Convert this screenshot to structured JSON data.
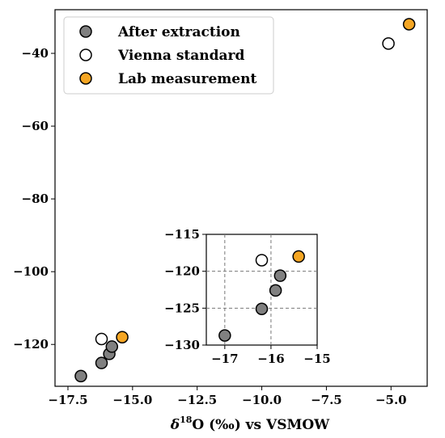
{
  "chart_data": {
    "type": "scatter",
    "xlabel_parts": {
      "delta": "δ",
      "sup": "18",
      "rest": "O (‰) vs VSMOW"
    },
    "xlim": [
      -18.0,
      -3.6
    ],
    "ylim": [
      -131.5,
      -28.0
    ],
    "xticks": [
      -17.5,
      -15.0,
      -12.5,
      -10.0,
      -7.5,
      -5.0
    ],
    "xtick_labels": [
      "−17.5",
      "−15.0",
      "−12.5",
      "−10.0",
      "−7.5",
      "−5.0"
    ],
    "yticks": [
      -120,
      -100,
      -80,
      -60,
      -40
    ],
    "ytick_labels": [
      "−120",
      "−100",
      "−80",
      "−60",
      "−40"
    ],
    "legend_position": "upper-left",
    "series": [
      {
        "name": "After extraction",
        "color": "#808080",
        "points": [
          {
            "x": -17.0,
            "y": -128.7
          },
          {
            "x": -16.2,
            "y": -125.1
          },
          {
            "x": -15.9,
            "y": -122.6
          },
          {
            "x": -15.8,
            "y": -120.6
          }
        ]
      },
      {
        "name": "Vienna standard",
        "color": "#ffffff",
        "points": [
          {
            "x": -16.2,
            "y": -118.5
          },
          {
            "x": -5.1,
            "y": -37.3
          }
        ]
      },
      {
        "name": "Lab measurement",
        "color": "#f5a623",
        "points": [
          {
            "x": -15.4,
            "y": -118.0
          },
          {
            "x": -4.3,
            "y": -32.0
          }
        ]
      }
    ],
    "inset": {
      "xlim": [
        -17.4,
        -15.0
      ],
      "ylim": [
        -130,
        -115
      ],
      "xticks": [
        -17,
        -16,
        -15
      ],
      "xtick_labels": [
        "−17",
        "−16",
        "−15"
      ],
      "yticks": [
        -130,
        -125,
        -120,
        -115
      ],
      "ytick_labels": [
        "−130",
        "−125",
        "−120",
        "−115"
      ],
      "grid": true,
      "grid_x": [
        -17,
        -16
      ],
      "grid_y": [
        -125,
        -120
      ]
    }
  }
}
